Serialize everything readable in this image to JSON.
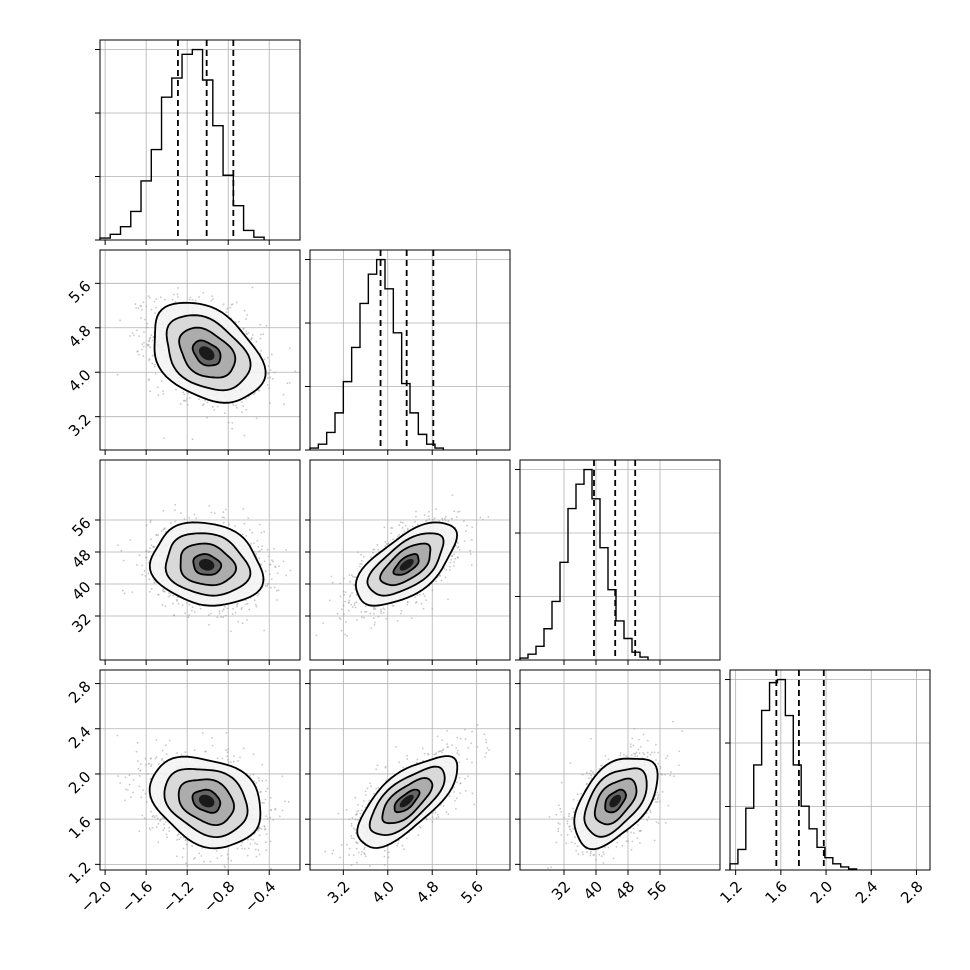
{
  "chart_data": {
    "type": "corner",
    "parameters": [
      {
        "name": "",
        "range": [
          -2.05,
          -0.1
        ],
        "ticks": [
          -2.0,
          -1.6,
          -1.2,
          -0.8,
          -0.4
        ],
        "tick_labels": [
          "−2.0",
          "−1.6",
          "−1.2",
          "−0.8",
          "−0.4"
        ],
        "quantiles": [
          -1.29,
          -1.01,
          -0.75
        ],
        "histogram": {
          "start": -2.05,
          "bin_width": 0.1,
          "counts": [
            2,
            6,
            14,
            30,
            62,
            95,
            150,
            170,
            195,
            200,
            168,
            120,
            68,
            36,
            10,
            3
          ]
        }
      },
      {
        "name": "",
        "range": [
          2.6,
          6.2
        ],
        "ticks": [
          3.2,
          4.0,
          4.8,
          5.6
        ],
        "tick_labels": [
          "3.2",
          "4.0",
          "4.8",
          "5.6"
        ],
        "quantiles": [
          3.87,
          4.34,
          4.82
        ],
        "histogram": {
          "start": 2.6,
          "bin_width": 0.15,
          "counts": [
            2,
            6,
            18,
            38,
            70,
            105,
            150,
            180,
            195,
            165,
            120,
            68,
            38,
            16,
            6,
            2
          ]
        }
      },
      {
        "name": "",
        "range": [
          21,
          71
        ],
        "ticks": [
          32,
          40,
          48,
          56
        ],
        "tick_labels": [
          "32",
          "40",
          "48",
          "56"
        ],
        "quantiles": [
          39.5,
          44.8,
          49.8
        ],
        "histogram": {
          "start": 21.0,
          "bin_width": 2.0,
          "counts": [
            2,
            6,
            14,
            32,
            60,
            100,
            155,
            180,
            195,
            165,
            115,
            72,
            40,
            22,
            8,
            3
          ]
        }
      },
      {
        "name": "",
        "range": [
          1.15,
          2.92
        ],
        "ticks": [
          1.2,
          1.6,
          2.0,
          2.4,
          2.8
        ],
        "tick_labels": [
          "1.2",
          "1.6",
          "2.0",
          "2.4",
          "2.8"
        ],
        "quantiles": [
          1.56,
          1.76,
          1.98
        ],
        "histogram": {
          "start": 1.15,
          "bin_width": 0.07,
          "counts": [
            6,
            20,
            60,
            102,
            155,
            182,
            185,
            150,
            102,
            62,
            40,
            22,
            12,
            6,
            3,
            1
          ]
        }
      }
    ],
    "pairs": [
      {
        "x": 0,
        "y": 1,
        "mean": [
          -1.01,
          4.34
        ],
        "sd": [
          0.27,
          0.45
        ],
        "rho": -0.35
      },
      {
        "x": 0,
        "y": 2,
        "mean": [
          -1.01,
          44.8
        ],
        "sd": [
          0.27,
          5.2
        ],
        "rho": -0.15
      },
      {
        "x": 1,
        "y": 2,
        "mean": [
          4.34,
          44.8
        ],
        "sd": [
          0.45,
          5.2
        ],
        "rho": 0.62
      },
      {
        "x": 0,
        "y": 3,
        "mean": [
          -1.01,
          1.76
        ],
        "sd": [
          0.27,
          0.2
        ],
        "rho": -0.25
      },
      {
        "x": 1,
        "y": 3,
        "mean": [
          4.34,
          1.76
        ],
        "sd": [
          0.45,
          0.2
        ],
        "rho": 0.7
      },
      {
        "x": 2,
        "y": 3,
        "mean": [
          44.8,
          1.76
        ],
        "sd": [
          5.2,
          0.2
        ],
        "rho": 0.5
      }
    ],
    "contour_levels_sigma": [
      0.5,
      1.0,
      1.5,
      2.0
    ],
    "grid": true
  }
}
